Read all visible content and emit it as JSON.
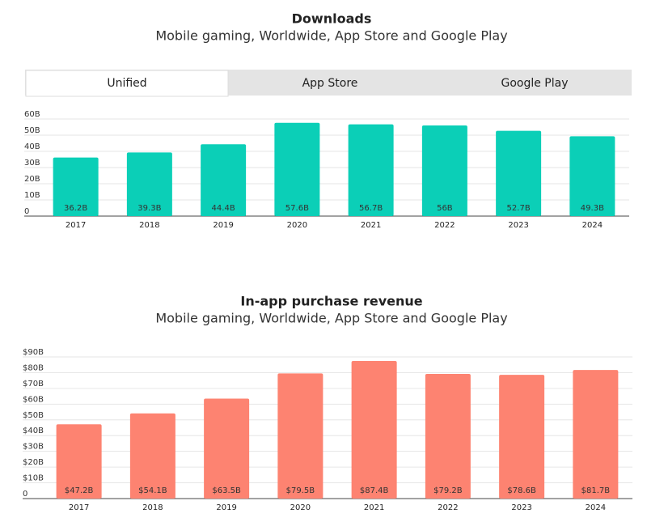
{
  "tabs": [
    "Unified",
    "App Store",
    "Google Play"
  ],
  "chart_data": [
    {
      "type": "bar",
      "title": "Downloads",
      "subtitle": "Mobile gaming, Worldwide, App Store and Google Play",
      "categories": [
        "2017",
        "2018",
        "2019",
        "2020",
        "2021",
        "2022",
        "2023",
        "2024"
      ],
      "values": [
        36.2,
        39.3,
        44.4,
        57.6,
        56.7,
        56,
        52.7,
        49.3
      ],
      "value_labels": [
        "36.2B",
        "39.3B",
        "44.4B",
        "57.6B",
        "56.7B",
        "56B",
        "52.7B",
        "49.3B"
      ],
      "color": "#0bcfb7",
      "ylim": [
        0,
        60
      ],
      "yticks": [
        0,
        {
          "value": 10,
          "label": "10B"
        },
        {
          "value": 20,
          "label": "20B"
        },
        {
          "value": 30,
          "label": "30B"
        },
        {
          "value": 40,
          "label": "40B"
        },
        {
          "value": 50,
          "label": "50B"
        },
        {
          "value": 60,
          "label": "60B"
        }
      ],
      "grid": true
    },
    {
      "type": "bar",
      "title": "In-app purchase revenue",
      "subtitle": "Mobile gaming, Worldwide, App Store and Google Play",
      "categories": [
        "2017",
        "2018",
        "2019",
        "2020",
        "2021",
        "2022",
        "2023",
        "2024"
      ],
      "values": [
        47.2,
        54.1,
        63.5,
        79.5,
        87.4,
        79.2,
        78.6,
        81.7
      ],
      "value_labels": [
        "$47.2B",
        "$54.1B",
        "$63.5B",
        "$79.5B",
        "$87.4B",
        "$79.2B",
        "$78.6B",
        "$81.7B"
      ],
      "color": "#fd8371",
      "ylim": [
        0,
        90
      ],
      "yticks": [
        0,
        {
          "value": 10,
          "label": "$10B"
        },
        {
          "value": 20,
          "label": "$20B"
        },
        {
          "value": 30,
          "label": "$30B"
        },
        {
          "value": 40,
          "label": "$40B"
        },
        {
          "value": 50,
          "label": "$50B"
        },
        {
          "value": 60,
          "label": "$60B"
        },
        {
          "value": 70,
          "label": "$70B"
        },
        {
          "value": 80,
          "label": "$80B"
        },
        {
          "value": 90,
          "label": "$90B"
        }
      ],
      "grid": true
    }
  ]
}
